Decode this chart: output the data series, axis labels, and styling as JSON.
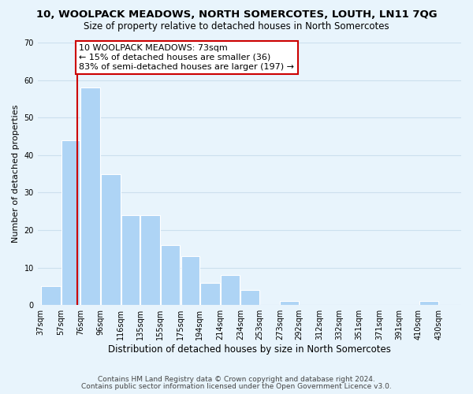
{
  "title": "10, WOOLPACK MEADOWS, NORTH SOMERCOTES, LOUTH, LN11 7QG",
  "subtitle": "Size of property relative to detached houses in North Somercotes",
  "xlabel": "Distribution of detached houses by size in North Somercotes",
  "ylabel": "Number of detached properties",
  "footnote1": "Contains HM Land Registry data © Crown copyright and database right 2024.",
  "footnote2": "Contains public sector information licensed under the Open Government Licence v3.0.",
  "bin_labels": [
    "37sqm",
    "57sqm",
    "76sqm",
    "96sqm",
    "116sqm",
    "135sqm",
    "155sqm",
    "175sqm",
    "194sqm",
    "214sqm",
    "234sqm",
    "253sqm",
    "273sqm",
    "292sqm",
    "312sqm",
    "332sqm",
    "351sqm",
    "371sqm",
    "391sqm",
    "410sqm",
    "430sqm"
  ],
  "bar_values": [
    5,
    44,
    58,
    35,
    24,
    24,
    16,
    13,
    6,
    8,
    4,
    0,
    1,
    0,
    0,
    0,
    0,
    0,
    0,
    1,
    0
  ],
  "bar_left_edges": [
    37,
    57,
    76,
    96,
    116,
    135,
    155,
    175,
    194,
    214,
    234,
    253,
    273,
    292,
    312,
    332,
    351,
    371,
    391,
    410,
    430
  ],
  "bin_widths": [
    20,
    19,
    20,
    20,
    19,
    20,
    20,
    19,
    20,
    20,
    19,
    20,
    19,
    20,
    20,
    19,
    20,
    20,
    19,
    20,
    19
  ],
  "bar_color": "#aed4f5",
  "vline_color": "#cc0000",
  "vline_x": 73,
  "annotation_text": "10 WOOLPACK MEADOWS: 73sqm\n← 15% of detached houses are smaller (36)\n83% of semi-detached houses are larger (197) →",
  "annotation_box_edgecolor": "#cc0000",
  "ylim": [
    0,
    70
  ],
  "yticks": [
    0,
    10,
    20,
    30,
    40,
    50,
    60,
    70
  ],
  "grid_color": "#cce0ee",
  "background_color": "#e8f4fc",
  "title_fontsize": 9.5,
  "subtitle_fontsize": 8.5,
  "xlabel_fontsize": 8.5,
  "ylabel_fontsize": 8.0,
  "tick_fontsize": 7.0,
  "annotation_fontsize": 8.0,
  "footnote_fontsize": 6.5
}
